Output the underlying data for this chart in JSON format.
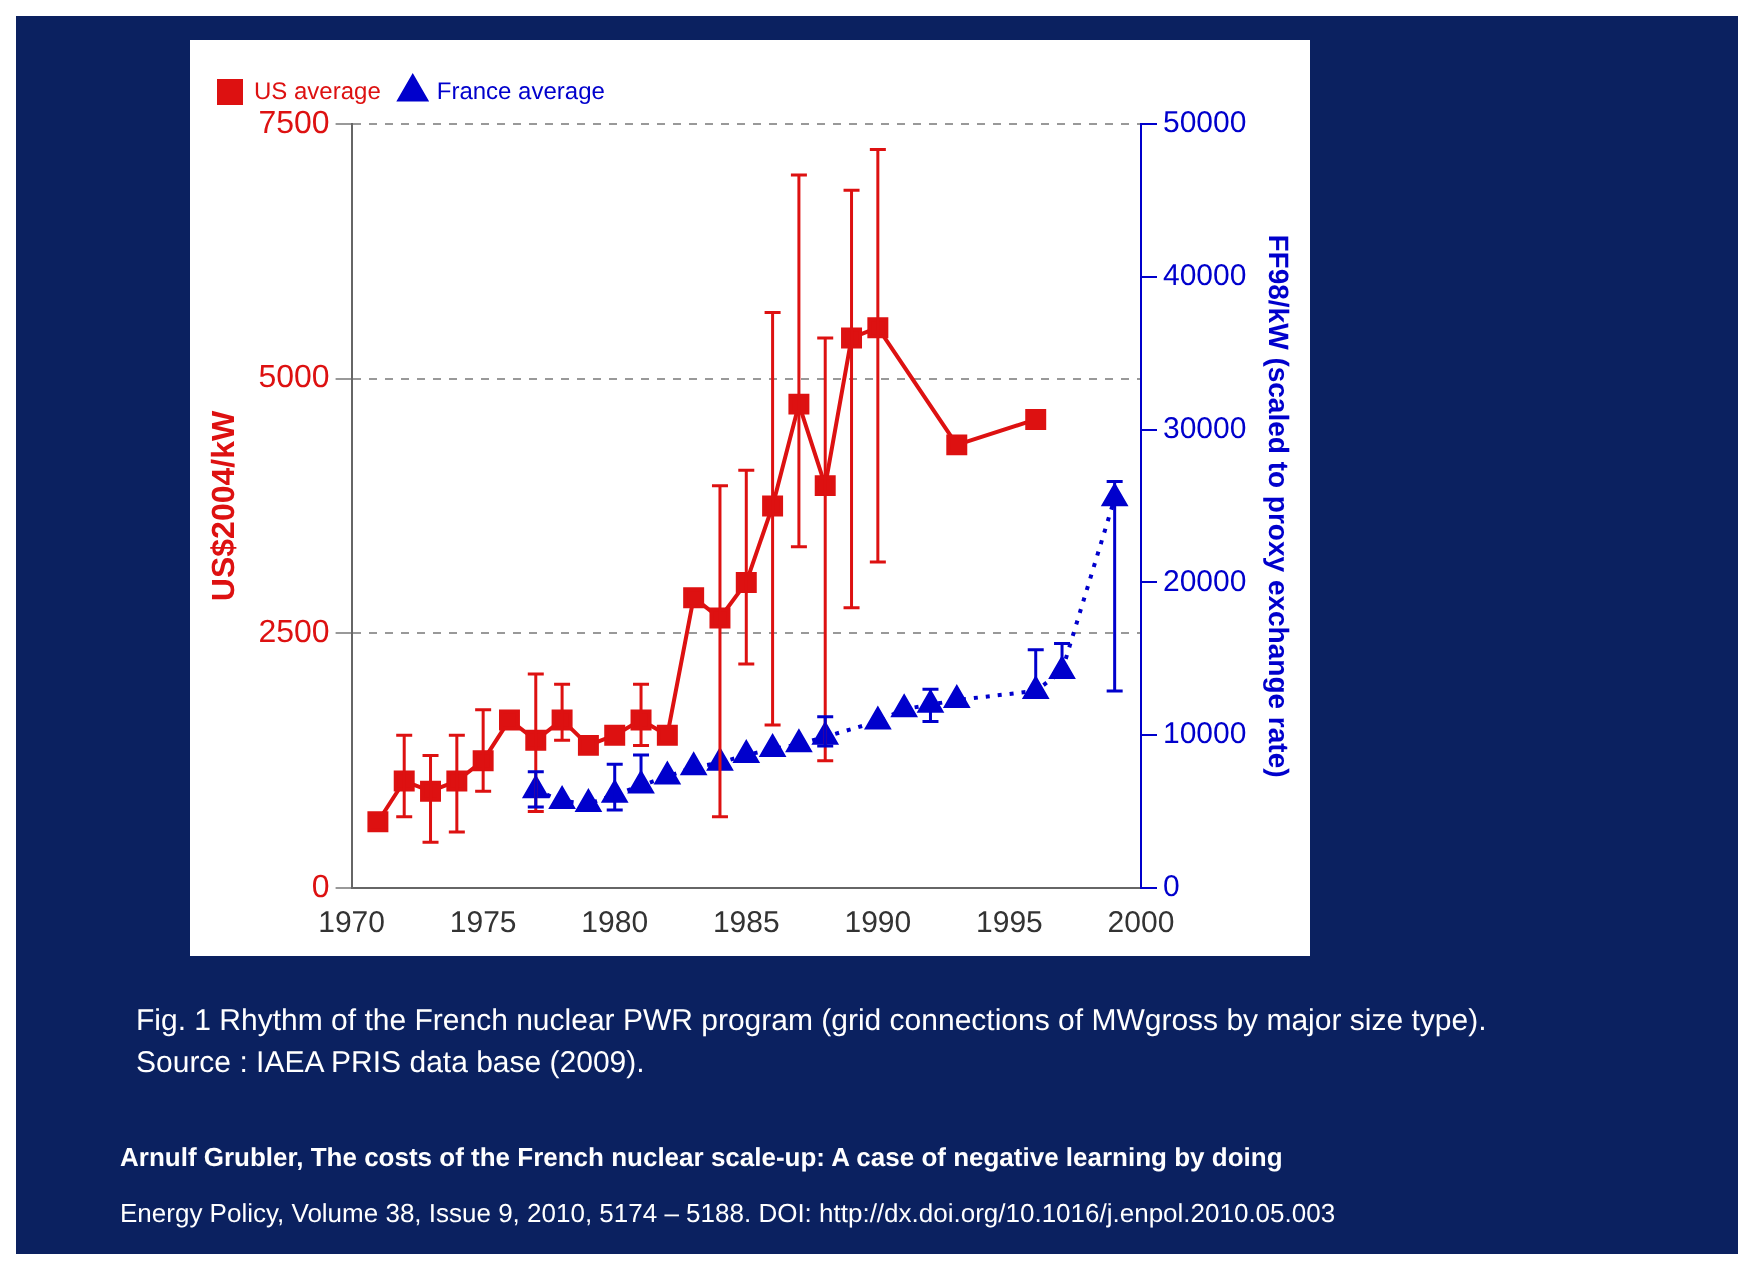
{
  "chart_data": {
    "type": "line",
    "ylabel": "US$2004/kW",
    "y2label": "FF98/kW (scaled to proxy exchange rate)",
    "xlim": [
      1970,
      2000
    ],
    "xticks": [
      1970,
      1975,
      1980,
      1985,
      1990,
      1995,
      2000
    ],
    "ylim": [
      0,
      7500
    ],
    "yticks": [
      0,
      2500,
      5000,
      7500
    ],
    "y2lim": [
      0,
      50000
    ],
    "y2ticks": [
      0,
      10000,
      20000,
      30000,
      40000,
      50000
    ],
    "grid": "y",
    "legend": "top left",
    "series": [
      {
        "name": "US average",
        "color": "#dd1111",
        "marker": "square",
        "line_style": "solid",
        "x": [
          1971,
          1972,
          1973,
          1974,
          1975,
          1976,
          1977,
          1978,
          1979,
          1980,
          1981,
          1982,
          1983,
          1984,
          1985,
          1986,
          1987,
          1988,
          1989,
          1990,
          1993,
          1996
        ],
        "values": [
          650,
          1050,
          950,
          1050,
          1250,
          1650,
          1450,
          1650,
          1400,
          1500,
          1650,
          1500,
          2850,
          2650,
          3000,
          3750,
          4750,
          3950,
          5400,
          5500,
          4350,
          4600
        ],
        "errors": [
          null,
          [
            700,
            1500
          ],
          [
            450,
            1300
          ],
          [
            550,
            1500
          ],
          [
            950,
            1750
          ],
          null,
          [
            750,
            2100
          ],
          [
            1450,
            2000
          ],
          null,
          null,
          [
            1400,
            2000
          ],
          null,
          null,
          [
            700,
            3950
          ],
          [
            2200,
            4100
          ],
          [
            1600,
            5650
          ],
          [
            3350,
            7000
          ],
          [
            1250,
            5400
          ],
          [
            2750,
            6850
          ],
          [
            3200,
            7250
          ],
          null,
          null
        ]
      },
      {
        "name": "France average",
        "color": "#0000cc",
        "marker": "triangle",
        "line_style": "dotted",
        "axis": "y2",
        "x": [
          1977,
          1978,
          1979,
          1980,
          1981,
          1982,
          1983,
          1984,
          1985,
          1986,
          1987,
          1988,
          1990,
          1991,
          1992,
          1993,
          1996,
          1997,
          1999
        ],
        "values": [
          6400,
          5700,
          5500,
          6100,
          6700,
          7300,
          7900,
          8200,
          8700,
          9100,
          9400,
          9900,
          10900,
          11700,
          12000,
          12300,
          12900,
          14200,
          25500
        ],
        "errors": [
          [
            5300,
            7600
          ],
          null,
          null,
          [
            5100,
            8100
          ],
          [
            6700,
            8700
          ],
          null,
          null,
          null,
          null,
          null,
          null,
          [
            9300,
            11200
          ],
          null,
          null,
          [
            10900,
            13000
          ],
          null,
          [
            12900,
            15600
          ],
          [
            14200,
            16000
          ],
          [
            12900,
            26600
          ]
        ]
      }
    ],
    "annotations": [
      "Fig. 1 Rhythm of the French nuclear PWR program (grid connections of MWgross by major size type). Source : IAEA PRIS data base (2009).",
      "Arnulf  Grubler,  The costs of the French nuclear scale-up: A case of negative learning by doing",
      "Energy Policy, Volume 38, Issue 9, 2010, 5174 – 5188.  DOI:  http://dx.doi.org/10.1016/j.enpol.2010.05.003"
    ]
  }
}
